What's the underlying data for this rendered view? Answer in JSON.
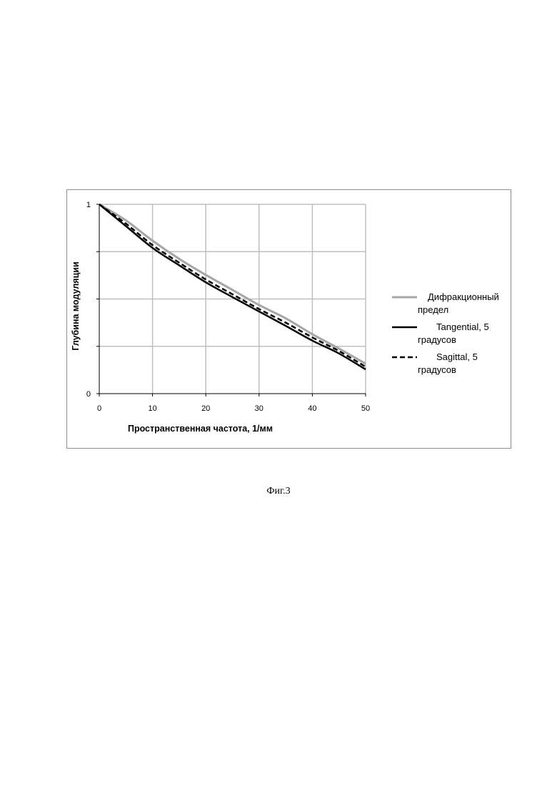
{
  "chart_data": {
    "type": "line",
    "xlabel": "Пространственная частота, 1/мм",
    "ylabel": "Глубина модуляции",
    "xlim": [
      0,
      50
    ],
    "ylim": [
      0,
      1
    ],
    "x_ticks": [
      0,
      10,
      20,
      30,
      40,
      50
    ],
    "y_tick_labels": [
      {
        "value": 0,
        "label": "0"
      },
      {
        "value": 0.25,
        "label": ""
      },
      {
        "value": 0.5,
        "label": ""
      },
      {
        "value": 0.75,
        "label": ""
      },
      {
        "value": 1,
        "label": "1"
      }
    ],
    "grid": true,
    "legend_position": "right",
    "x": [
      0,
      5,
      10,
      15,
      20,
      25,
      30,
      35,
      40,
      45,
      50
    ],
    "series": [
      {
        "name_lines": [
          "Дифракционный",
          "предел"
        ],
        "color": "#a6a6a6",
        "dash": "solid",
        "values": [
          1.0,
          0.915,
          0.808,
          0.712,
          0.627,
          0.548,
          0.468,
          0.398,
          0.314,
          0.238,
          0.158
        ]
      },
      {
        "name_lines": [
          "Tangential, 5",
          "градусов"
        ],
        "color": "#000000",
        "dash": "solid",
        "values": [
          1.0,
          0.885,
          0.77,
          0.678,
          0.588,
          0.51,
          0.434,
          0.358,
          0.28,
          0.212,
          0.128
        ]
      },
      {
        "name_lines": [
          "Sagittal, 5",
          "градусов"
        ],
        "color": "#000000",
        "dash": "dashed",
        "values": [
          1.0,
          0.898,
          0.785,
          0.692,
          0.603,
          0.525,
          0.447,
          0.375,
          0.297,
          0.225,
          0.142
        ]
      }
    ]
  },
  "caption": "Фиг.3"
}
